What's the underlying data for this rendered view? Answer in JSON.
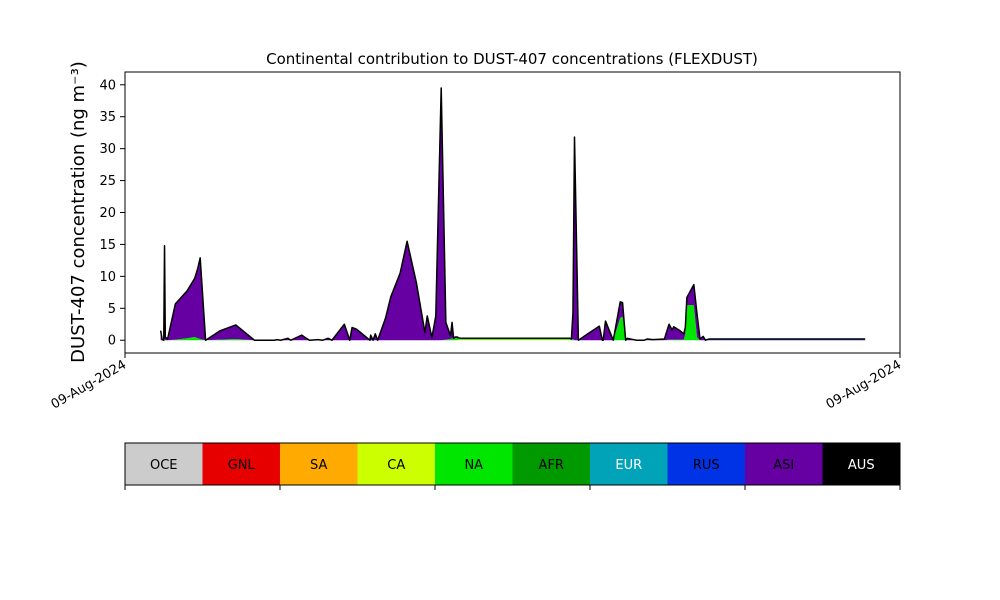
{
  "chart_data": {
    "type": "area",
    "title": "Continental contribution to DUST-407 concentrations (FLEXDUST)",
    "ylabel": "DUST-407 concentration (ng m⁻³)",
    "xlabel": "",
    "ylim": [
      -2,
      42
    ],
    "xlim": [
      0,
      100
    ],
    "y_ticks": [
      0,
      5,
      10,
      15,
      20,
      25,
      30,
      35,
      40
    ],
    "x_ticks": [
      {
        "x": 0,
        "label": "09-Aug-2024"
      },
      {
        "x": 100,
        "label": "09-Aug-2024"
      }
    ],
    "grid": false,
    "stacked": true,
    "x": [
      4.6,
      4.8,
      5.0,
      5.1,
      5.2,
      5.5,
      6.5,
      8.0,
      9.0,
      9.4,
      9.7,
      10.4,
      12.3,
      14.3,
      16.7,
      19.3,
      19.6,
      20.1,
      21.0,
      21.4,
      22.8,
      23.4,
      23.8,
      24.9,
      25.5,
      26.2,
      26.7,
      28.3,
      29.0,
      29.3,
      29.9,
      31.6,
      31.7,
      32.0,
      32.3,
      32.6,
      33.6,
      34.3,
      35.5,
      36.4,
      37.6,
      38.7,
      39.0,
      39.6,
      40.1,
      40.8,
      41.4,
      42.0,
      42.2,
      42.4,
      42.6,
      42.9,
      43.0,
      43.3,
      43.7,
      44.6,
      47.3,
      52.5,
      57.4,
      57.6,
      57.8,
      58.0,
      58.5,
      59.7,
      60.7,
      61.2,
      61.6,
      61.7,
      62.0,
      63.0,
      63.9,
      64.2,
      64.6,
      64.8,
      66.0,
      67.0,
      67.4,
      68.1,
      69.6,
      70.2,
      70.6,
      70.8,
      71.6,
      72.1,
      72.3,
      72.5,
      73.4,
      73.8,
      74.2,
      74.6,
      74.9,
      75.1,
      75.4,
      76.6,
      77.4,
      85.0,
      95.5
    ],
    "series": [
      {
        "name": "OCE",
        "color": "#cccccc",
        "values": [
          0,
          0,
          0,
          0,
          0,
          0,
          0,
          0,
          0,
          0,
          0,
          0,
          0,
          0,
          0,
          0,
          0,
          0,
          0,
          0,
          0,
          0,
          0,
          0,
          0,
          0,
          0,
          0,
          0,
          0,
          0,
          0,
          0,
          0,
          0,
          0,
          0,
          0,
          0,
          0,
          0,
          0,
          0,
          0,
          0,
          0,
          0,
          0,
          0,
          0,
          0,
          0,
          0,
          0,
          0,
          0,
          0,
          0,
          0,
          0,
          0,
          0,
          0,
          0,
          0,
          0,
          0,
          0,
          0,
          0,
          0,
          0,
          0,
          0,
          0,
          0,
          0,
          0,
          0,
          0,
          0,
          0,
          0,
          0,
          0,
          0,
          0,
          0,
          0,
          0,
          0,
          0,
          0,
          0,
          0,
          0,
          0
        ]
      },
      {
        "name": "GNL",
        "color": "#e60000",
        "values": [
          0,
          0,
          0,
          0,
          0,
          0,
          0,
          0,
          0,
          0,
          0,
          0,
          0,
          0,
          0,
          0,
          0,
          0,
          0,
          0,
          0,
          0,
          0,
          0,
          0,
          0,
          0,
          0,
          0,
          0,
          0,
          0,
          0,
          0,
          0,
          0,
          0,
          0,
          0,
          0,
          0,
          0,
          0,
          0,
          0,
          0,
          0,
          0,
          0,
          0,
          0,
          0,
          0,
          0,
          0,
          0,
          0,
          0,
          0,
          0,
          0,
          0,
          0,
          0,
          0,
          0,
          0,
          0,
          0,
          0,
          0,
          0,
          0,
          0,
          0,
          0,
          0,
          0,
          0,
          0,
          0,
          0,
          0,
          0,
          0,
          0,
          0,
          0,
          0,
          0,
          0,
          0,
          0,
          0,
          0,
          0,
          0
        ]
      },
      {
        "name": "SA",
        "color": "#ffaa00",
        "values": [
          0,
          0,
          0,
          0,
          0,
          0,
          0,
          0,
          0,
          0,
          0,
          0,
          0,
          0,
          0,
          0,
          0,
          0,
          0,
          0,
          0,
          0,
          0,
          0,
          0,
          0,
          0,
          0,
          0,
          0,
          0,
          0,
          0,
          0,
          0,
          0,
          0,
          0,
          0,
          0,
          0,
          0,
          0,
          0,
          0,
          0,
          0,
          0,
          0,
          0,
          0,
          0,
          0,
          0,
          0,
          0,
          0,
          0,
          0,
          0,
          0,
          0,
          0,
          0,
          0,
          0,
          0,
          0,
          0,
          0,
          0,
          0,
          0,
          0,
          0,
          0,
          0,
          0,
          0,
          0,
          0,
          0,
          0,
          0,
          0,
          0,
          0,
          0,
          0,
          0,
          0,
          0,
          0,
          0,
          0,
          0,
          0
        ]
      },
      {
        "name": "CA",
        "color": "#ccff00",
        "values": [
          0,
          0,
          0,
          0,
          0,
          0,
          0,
          0,
          0,
          0,
          0,
          0,
          0,
          0,
          0,
          0,
          0,
          0,
          0,
          0,
          0,
          0,
          0,
          0,
          0,
          0,
          0,
          0,
          0,
          0,
          0,
          0,
          0,
          0,
          0,
          0,
          0,
          0,
          0,
          0,
          0,
          0,
          0,
          0,
          0,
          0,
          0,
          0,
          0,
          0,
          0,
          0,
          0.1,
          0.1,
          0.1,
          0.1,
          0.1,
          0.1,
          0.1,
          0,
          0,
          0,
          0,
          0,
          0,
          0,
          0,
          0,
          0,
          0,
          0,
          0,
          0,
          0,
          0,
          0,
          0,
          0,
          0,
          0,
          0,
          0,
          0,
          0,
          0,
          0,
          0,
          0,
          0,
          0,
          0,
          0,
          0,
          0,
          0,
          0,
          0
        ]
      },
      {
        "name": "NA",
        "color": "#00e600",
        "values": [
          0,
          0.1,
          0,
          0.2,
          0,
          0,
          0.1,
          0.3,
          0.5,
          0.3,
          0.2,
          0,
          0.1,
          0.2,
          0,
          0,
          0,
          0,
          0,
          0,
          0,
          0,
          0,
          0,
          0,
          0,
          0,
          0,
          0,
          0,
          0,
          0,
          0,
          0,
          0,
          0,
          0,
          0,
          0,
          0,
          0,
          0,
          0,
          0,
          0,
          0,
          0.1,
          0.2,
          0.3,
          0.2,
          0.3,
          0.3,
          0.2,
          0.1,
          0.1,
          0.1,
          0.1,
          0.1,
          0.1,
          0.1,
          0.2,
          0,
          0,
          0,
          0,
          0,
          0,
          0,
          0,
          0,
          3.5,
          3.7,
          0,
          0,
          0,
          0,
          0,
          0,
          0,
          0.1,
          0.1,
          0.1,
          0.1,
          0.1,
          1.0,
          5.5,
          5.5,
          0.5,
          0,
          0,
          0,
          0,
          0,
          0,
          0,
          0,
          0
        ]
      },
      {
        "name": "AFR",
        "color": "#009900",
        "values": [
          0,
          0,
          0,
          0,
          0,
          0,
          0,
          0,
          0,
          0,
          0,
          0,
          0,
          0,
          0,
          0,
          0,
          0,
          0,
          0,
          0,
          0,
          0,
          0,
          0,
          0,
          0,
          0,
          0,
          0,
          0,
          0,
          0,
          0,
          0,
          0,
          0,
          0,
          0,
          0,
          0,
          0,
          0,
          0,
          0,
          0,
          0,
          0,
          0,
          0,
          0,
          0,
          0,
          0,
          0,
          0,
          0,
          0,
          0,
          0,
          0,
          0,
          0,
          0,
          0,
          0,
          0,
          0,
          0,
          0,
          0,
          0,
          0,
          0,
          0,
          0,
          0,
          0,
          0,
          0,
          0,
          0,
          0,
          0,
          0,
          0,
          0,
          0,
          0,
          0,
          0,
          0,
          0,
          0,
          0,
          0,
          0
        ]
      },
      {
        "name": "EUR",
        "color": "#00a3b8",
        "values": [
          0,
          0,
          0,
          0,
          0,
          0,
          0,
          0,
          0,
          0,
          0,
          0,
          0,
          0,
          0,
          0,
          0,
          0,
          0,
          0,
          0,
          0,
          0,
          0,
          0,
          0,
          0,
          0,
          0,
          0,
          0,
          0,
          0,
          0,
          0,
          0,
          0,
          0,
          0,
          0,
          0,
          0,
          0,
          0,
          0,
          0,
          0,
          0,
          0,
          0,
          0,
          0,
          0,
          0,
          0,
          0,
          0,
          0,
          0,
          0,
          0,
          0,
          0,
          0,
          0,
          0,
          0,
          0,
          0,
          0,
          0,
          0,
          0,
          0,
          0,
          0,
          0,
          0,
          0,
          0,
          0,
          0,
          0,
          0,
          0,
          0,
          0,
          0,
          0,
          0,
          0,
          0,
          0,
          0,
          0,
          0,
          0
        ]
      },
      {
        "name": "RUS",
        "color": "#0033e6",
        "values": [
          0,
          0,
          0,
          0,
          0,
          0,
          0,
          0,
          0,
          0,
          0,
          0,
          0,
          0,
          0,
          0,
          0,
          0,
          0,
          0,
          0,
          0,
          0,
          0,
          0,
          0,
          0,
          0,
          0,
          0,
          0,
          0,
          0,
          0,
          0,
          0,
          0,
          0,
          0,
          0,
          0,
          0,
          0,
          0,
          0,
          0,
          0,
          0,
          0,
          0,
          0,
          0,
          0,
          0,
          0,
          0,
          0,
          0,
          0,
          0,
          0,
          0,
          0,
          0,
          0,
          0,
          0,
          0,
          0,
          0,
          0,
          0,
          0,
          0,
          0,
          0,
          0,
          0,
          0,
          0,
          0,
          0,
          0,
          0,
          0,
          0,
          0,
          0,
          0,
          0,
          0,
          0,
          0.1,
          0.1,
          0.1,
          0.1,
          0.1
        ]
      },
      {
        "name": "ASI",
        "color": "#6600a3",
        "values": [
          1.5,
          0,
          0,
          14.6,
          0.5,
          0.2,
          5.6,
          7.4,
          9.2,
          11.0,
          12.7,
          0,
          1.4,
          2.2,
          0,
          0,
          0.1,
          0,
          0.3,
          0,
          0.8,
          0.3,
          0,
          0.1,
          0,
          0.3,
          0,
          2.5,
          0,
          2.0,
          1.7,
          0,
          0.8,
          0,
          1.0,
          0,
          3.4,
          6.8,
          10.5,
          15.5,
          9.0,
          1.2,
          3.8,
          0.4,
          3.8,
          39.5,
          2.7,
          0.5,
          2.5,
          0.1,
          0.2,
          0.2,
          0.1,
          0.1,
          0.1,
          0.1,
          0.1,
          0.1,
          0.1,
          0.1,
          4.0,
          31.8,
          0,
          1.0,
          1.8,
          2.2,
          0,
          0,
          3.0,
          0,
          2.5,
          2.2,
          0,
          0.3,
          0,
          0,
          0.2,
          0.1,
          0.2,
          2.4,
          1.5,
          2.0,
          1.4,
          0.9,
          1.0,
          1.2,
          3.2,
          3.7,
          0.2,
          0.6,
          0,
          0.1,
          0.1,
          0.1,
          0.1,
          0.1,
          0.1
        ]
      },
      {
        "name": "AUS",
        "color": "#000000",
        "values": [
          0,
          0,
          0,
          0,
          0,
          0,
          0,
          0,
          0,
          0,
          0,
          0,
          0,
          0,
          0,
          0,
          0,
          0,
          0,
          0,
          0,
          0,
          0,
          0,
          0,
          0,
          0,
          0,
          0,
          0,
          0,
          0,
          0,
          0,
          0,
          0,
          0,
          0,
          0,
          0,
          0,
          0,
          0,
          0,
          0,
          0,
          0,
          0,
          0,
          0,
          0,
          0,
          0,
          0,
          0,
          0,
          0,
          0,
          0,
          0,
          0,
          0,
          0,
          0,
          0,
          0,
          0,
          0,
          0,
          0,
          0,
          0,
          0,
          0,
          0,
          0,
          0,
          0,
          0,
          0,
          0,
          0,
          0,
          0,
          0,
          0,
          0,
          0,
          0,
          0,
          0,
          0,
          0,
          0,
          0,
          0,
          0
        ]
      }
    ],
    "legend": {
      "position": "bottom",
      "items": [
        {
          "label": "OCE",
          "color": "#cccccc",
          "text_color": "#000000"
        },
        {
          "label": "GNL",
          "color": "#e60000",
          "text_color": "#000000"
        },
        {
          "label": "SA",
          "color": "#ffaa00",
          "text_color": "#000000"
        },
        {
          "label": "CA",
          "color": "#ccff00",
          "text_color": "#000000"
        },
        {
          "label": "NA",
          "color": "#00e600",
          "text_color": "#000000"
        },
        {
          "label": "AFR",
          "color": "#009900",
          "text_color": "#000000"
        },
        {
          "label": "EUR",
          "color": "#00a3b8",
          "text_color": "#ffffff"
        },
        {
          "label": "RUS",
          "color": "#0033e6",
          "text_color": "#000000"
        },
        {
          "label": "ASI",
          "color": "#6600a3",
          "text_color": "#000000"
        },
        {
          "label": "AUS",
          "color": "#000000",
          "text_color": "#ffffff"
        }
      ]
    }
  }
}
